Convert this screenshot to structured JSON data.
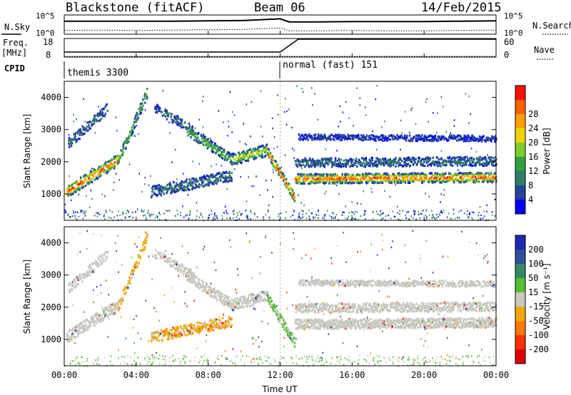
{
  "header": {
    "title": "Blackstone (fitACF)",
    "beam": "Beam 06",
    "date": "14/Feb/2015"
  },
  "noise_panel": {
    "left_label": "N.Sky",
    "right_label": "N.Search",
    "left_ticks": [
      "10^5",
      "10^0"
    ],
    "right_ticks": [
      "10^5",
      "10^0"
    ]
  },
  "freq_panel": {
    "left_label_line1": "Freq.",
    "left_label_line2": "[MHz]",
    "right_label": "Nave",
    "left_ticks": [
      "18",
      "8"
    ],
    "right_ticks": [
      "60",
      "0"
    ]
  },
  "cpid_panel": {
    "label": "CPID",
    "segments": [
      {
        "start": "00:00",
        "end": "12:00",
        "name": "themis 3300"
      },
      {
        "start": "12:00",
        "end": "24:00",
        "name": "normal (fast) 151"
      }
    ]
  },
  "chart_data": [
    {
      "type": "line",
      "title": "N.Sky / N.Search",
      "x": [
        "00:00",
        "02:00",
        "04:00",
        "06:00",
        "08:00",
        "10:00",
        "12:00",
        "12:30",
        "14:00",
        "16:00",
        "18:00",
        "20:00",
        "22:00",
        "24:00"
      ],
      "series": [
        {
          "name": "N.Sky",
          "values": [
            3.6,
            3.6,
            3.6,
            3.6,
            3.7,
            3.8,
            4.3,
            3.4,
            3.4,
            3.5,
            3.5,
            3.5,
            3.6,
            3.7
          ]
        },
        {
          "name": "N.Search",
          "values": [
            0.9,
            1.0,
            0.9,
            1.0,
            1.1,
            1.2,
            1.6,
            0.8,
            0.8,
            0.9,
            0.8,
            0.8,
            0.9,
            1.0
          ]
        }
      ],
      "ylabel": "N.Sky",
      "ylim": [
        0,
        5
      ]
    },
    {
      "type": "line",
      "title": "Freq. / Nave",
      "x": [
        "00:00",
        "12:00",
        "13:00",
        "24:00"
      ],
      "series": [
        {
          "name": "Freq.",
          "values": [
            10.5,
            10.5,
            18,
            18
          ]
        },
        {
          "name": "Nave",
          "values": [
            8,
            8,
            8,
            8
          ]
        }
      ],
      "ylim": [
        8,
        18
      ]
    },
    {
      "type": "heatmap",
      "title": "Power",
      "xlabel": "Time UT",
      "ylabel": "Slant Range [km]",
      "x_ticks": [
        "00:00",
        "04:00",
        "08:00",
        "12:00",
        "16:00",
        "20:00",
        "00:00"
      ],
      "y_ticks": [
        1000,
        2000,
        3000,
        4000
      ],
      "xlim_hours": [
        0,
        24
      ],
      "ylim": [
        180,
        4500
      ],
      "colorbar_label": "Power [dB]",
      "colorbar_ticks": [
        4,
        8,
        12,
        16,
        20,
        24,
        28
      ],
      "colors": [
        "#0000ff",
        "#22449a",
        "#2f7f66",
        "#33a040",
        "#7fcc2c",
        "#f0d400",
        "#ffa000",
        "#ff6000",
        "#ff1000"
      ]
    },
    {
      "type": "heatmap",
      "title": "Velocity",
      "xlabel": "Time UT",
      "ylabel": "Slant Range [km]",
      "x_ticks": [
        "00:00",
        "04:00",
        "08:00",
        "12:00",
        "16:00",
        "20:00",
        "00:00"
      ],
      "y_ticks": [
        1000,
        2000,
        3000,
        4000
      ],
      "xlim_hours": [
        0,
        24
      ],
      "ylim": [
        180,
        4500
      ],
      "colorbar_label": "Velocity [m s⁻¹]",
      "colorbar_ticks": [
        200,
        100,
        50,
        15,
        -15,
        -50,
        -100,
        -200
      ],
      "colors": [
        "#1a2bb0",
        "#2e4f9a",
        "#338a66",
        "#55c030",
        "#c8c8c0",
        "#f0a800",
        "#ff7a00",
        "#ff3000",
        "#e00000"
      ]
    }
  ],
  "axes": {
    "xlabel": "Time UT",
    "x_ticks": [
      "00:00",
      "04:00",
      "08:00",
      "12:00",
      "16:00",
      "20:00",
      "00:00"
    ],
    "ylabel": "Slant Range [km]",
    "power_cb_label": "Power [dB]",
    "velocity_cb_label": "Velocity [m s⁻¹]"
  }
}
